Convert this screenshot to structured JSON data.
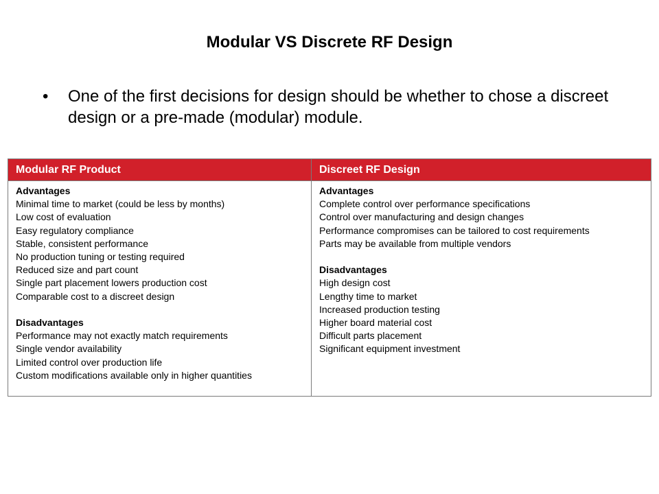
{
  "title": "Modular VS Discrete RF Design",
  "bullet": "One of the first decisions for design should be whether to chose a discreet design or a pre-made (modular) module.",
  "table": {
    "headers": [
      "Modular RF Product",
      "Discreet RF Design"
    ],
    "header_color": "#d1202a",
    "columns": [
      {
        "advantages_label": "Advantages",
        "advantages": [
          "Minimal time to market (could be less by months)",
          "Low cost of evaluation",
          "Easy regulatory compliance",
          "Stable, consistent performance",
          "No production tuning or testing required",
          "Reduced size and part count",
          "Single part placement lowers production cost",
          "Comparable cost to a discreet design"
        ],
        "disadvantages_label": "Disadvantages",
        "disadvantages": [
          "Performance may not exactly match requirements",
          "Single vendor availability",
          "Limited control over production life",
          "Custom modifications available only in higher quantities"
        ]
      },
      {
        "advantages_label": "Advantages",
        "advantages": [
          "Complete control over performance specifications",
          "Control over manufacturing  and design changes",
          "Performance compromises can be tailored to cost requirements",
          "Parts may be available from multiple vendors"
        ],
        "disadvantages_label": "Disadvantages",
        "disadvantages": [
          "High design cost",
          "Lengthy time to market",
          "Increased production testing",
          "Higher board material cost",
          "Difficult parts placement",
          "Significant equipment investment"
        ]
      }
    ]
  }
}
